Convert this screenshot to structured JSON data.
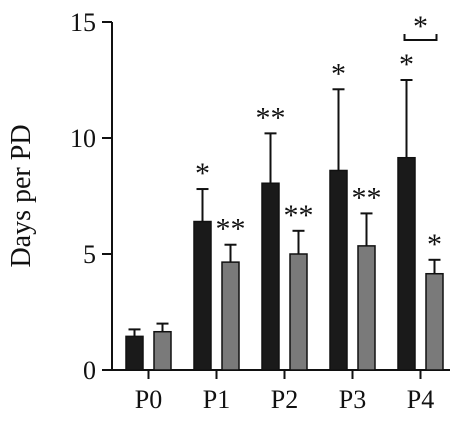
{
  "chart_data": {
    "type": "bar",
    "categories": [
      "P0",
      "P1",
      "P2",
      "P3",
      "P4"
    ],
    "ylabel": "Days per PD",
    "xlabel": "",
    "ylim": [
      0,
      15
    ],
    "yticks": [
      0,
      5,
      10,
      15
    ],
    "grid": false,
    "legend": "none",
    "series": [
      {
        "color": "#1a1a1a",
        "values": [
          1.45,
          6.4,
          8.05,
          8.6,
          9.15
        ],
        "errors": [
          0.3,
          1.4,
          2.15,
          3.5,
          3.35
        ],
        "annotations": [
          "",
          "*",
          "**",
          "*",
          "*"
        ]
      },
      {
        "color": "#7a7a7a",
        "values": [
          1.65,
          4.65,
          5.0,
          5.35,
          4.15
        ],
        "errors": [
          0.35,
          0.75,
          1.0,
          1.4,
          0.6
        ],
        "annotations": [
          "",
          "**",
          "**",
          "**",
          "*"
        ]
      }
    ],
    "comparisons": [
      {
        "category": "P4",
        "label": "*"
      }
    ]
  }
}
